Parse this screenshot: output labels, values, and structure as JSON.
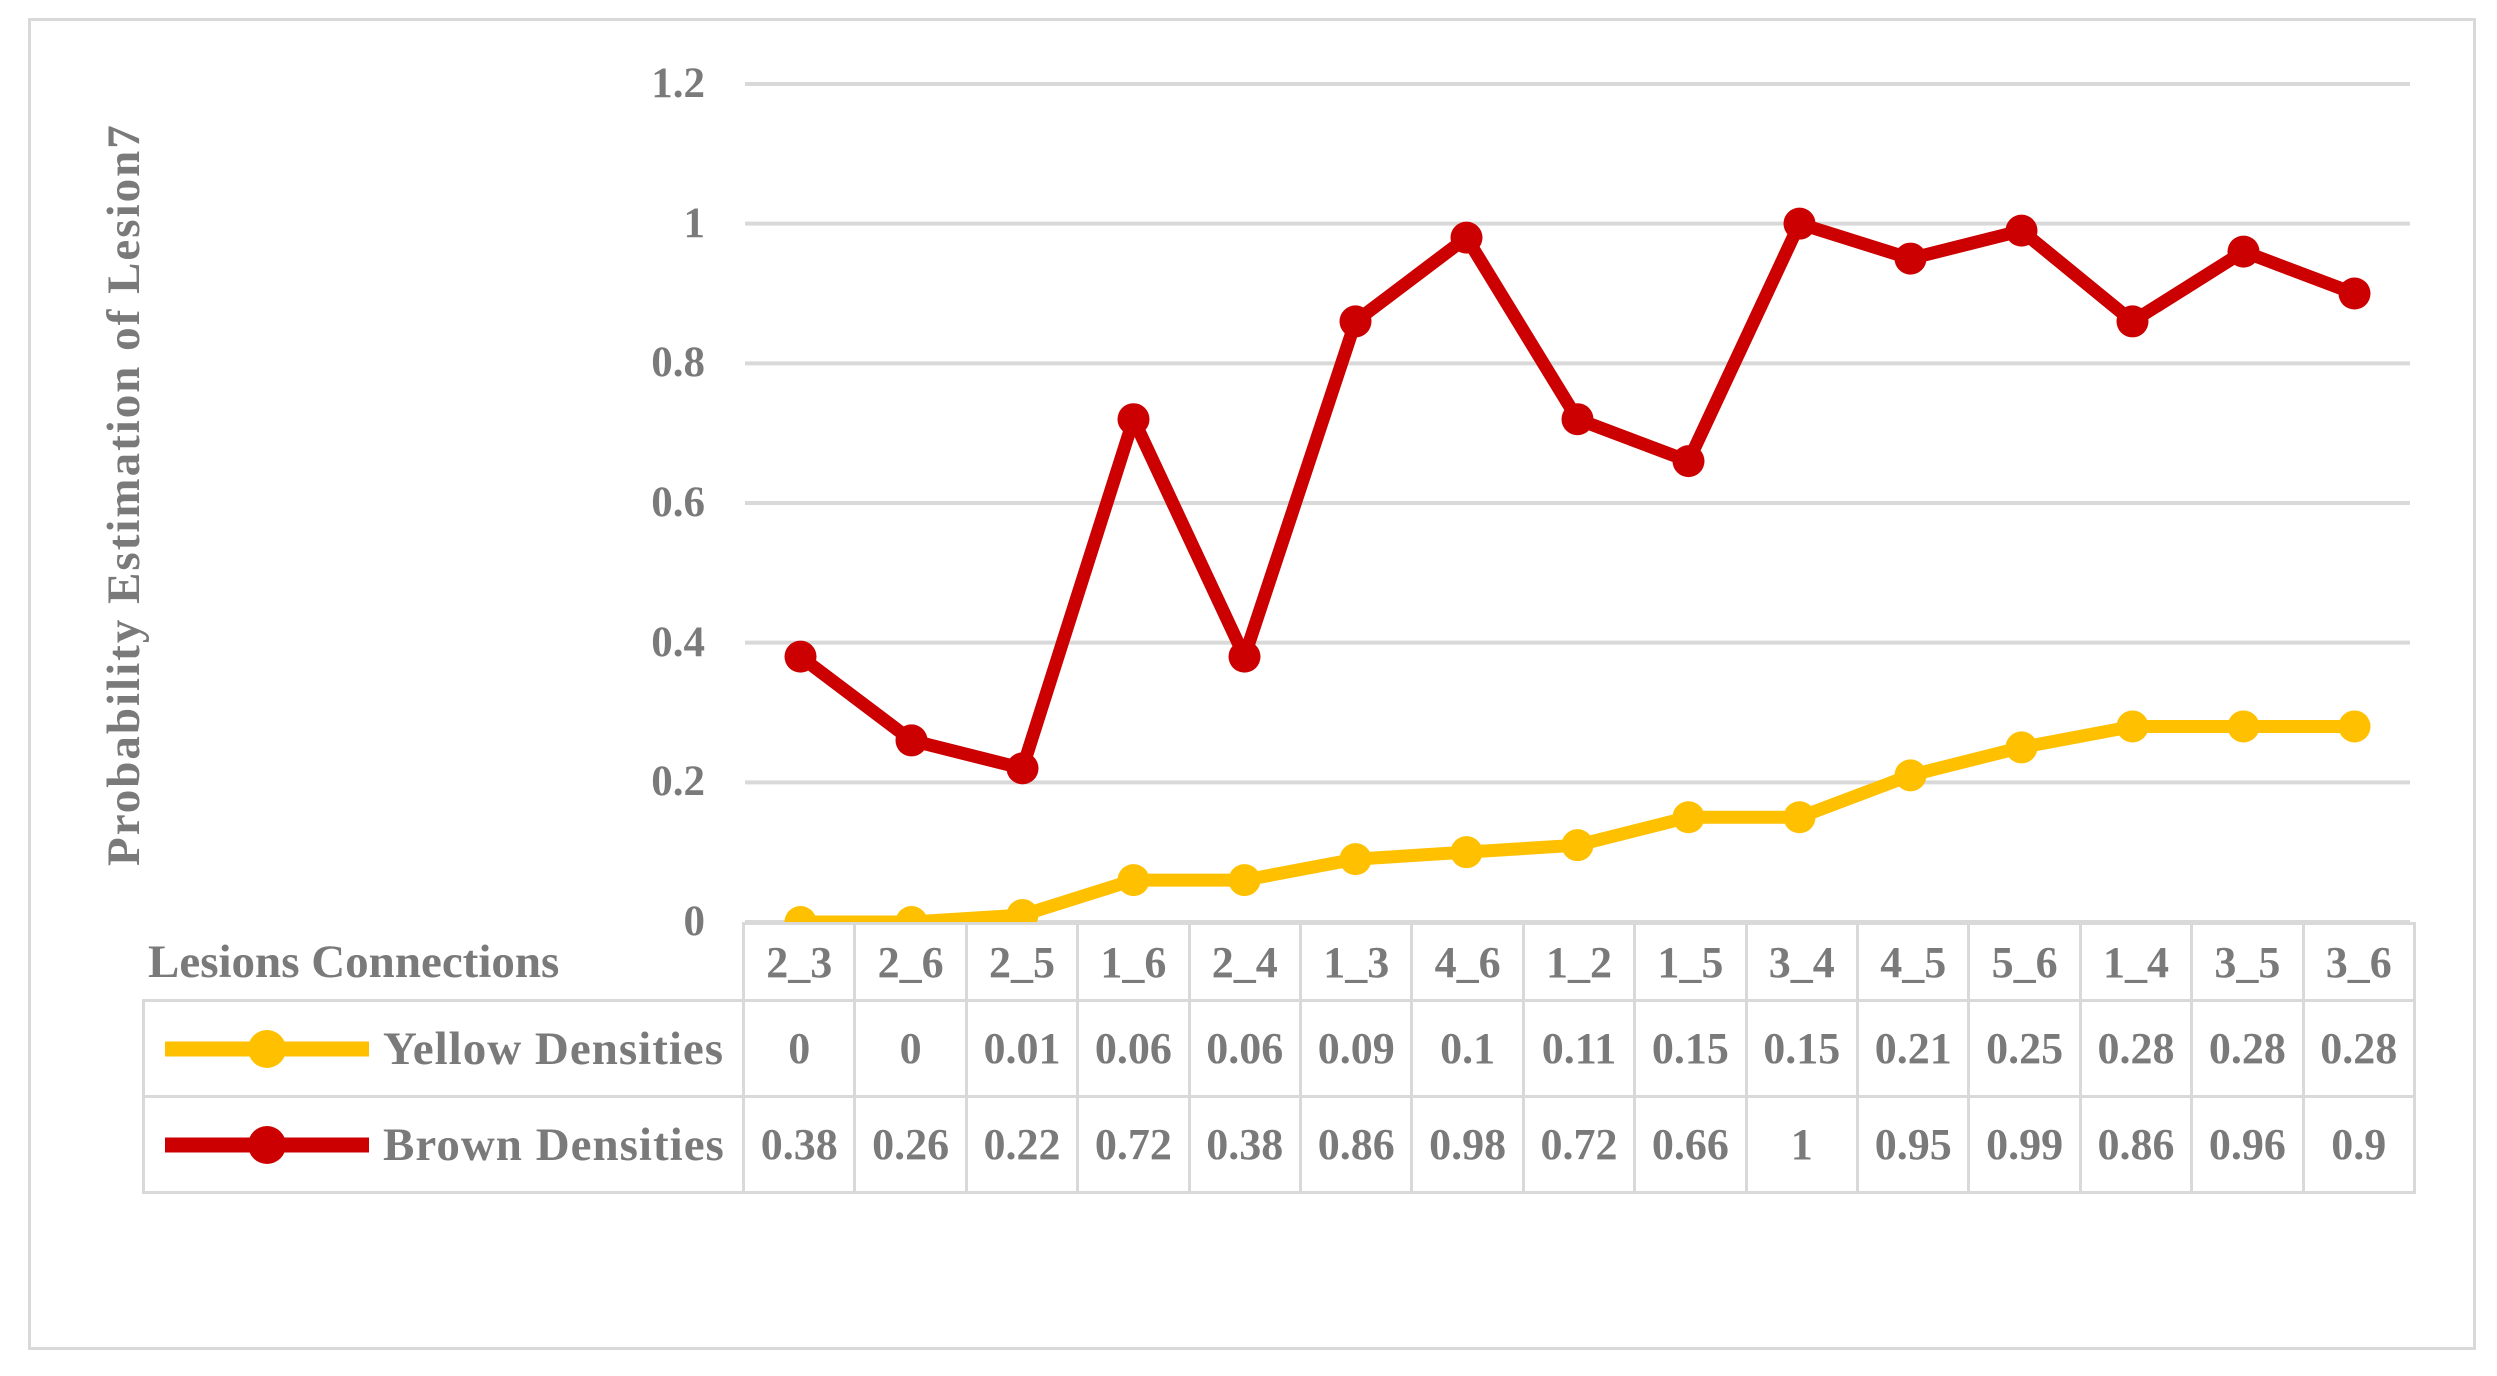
{
  "chart_data": {
    "type": "line",
    "title": "",
    "ylabel": "Probability Estimation of Lesion7",
    "xlabel": "Lesions Connections",
    "categories": [
      "2_3",
      "2_6",
      "2_5",
      "1_6",
      "2_4",
      "1_3",
      "4_6",
      "1_2",
      "1_5",
      "3_4",
      "4_5",
      "5_6",
      "1_4",
      "3_5",
      "3_6"
    ],
    "series": [
      {
        "name": "Yellow Densities",
        "color": "#FFC000",
        "values": [
          0,
          0,
          0.01,
          0.06,
          0.06,
          0.09,
          0.1,
          0.11,
          0.15,
          0.15,
          0.21,
          0.25,
          0.28,
          0.28,
          0.28
        ]
      },
      {
        "name": "Brown Densities",
        "color": "#CC0000",
        "values": [
          0.38,
          0.26,
          0.22,
          0.72,
          0.38,
          0.86,
          0.98,
          0.72,
          0.66,
          1,
          0.95,
          0.99,
          0.86,
          0.96,
          0.9
        ]
      }
    ],
    "ylim": [
      0,
      1.2
    ],
    "yticks": [
      "0",
      "0.2",
      "0.4",
      "0.6",
      "0.8",
      "1",
      "1.2"
    ],
    "grid": true,
    "legend_position": "table-left",
    "data_table": true
  },
  "colors": {
    "grid": "#D9D9D9",
    "border": "#D9D9D9",
    "text": "#7A7A7A",
    "background": "#FFFFFF"
  }
}
